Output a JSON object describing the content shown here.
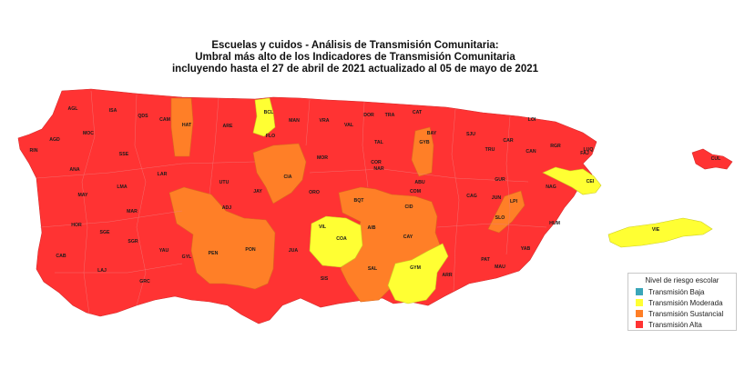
{
  "title": {
    "line1": "Escuelas y cuidos - Análisis de Transmisión Comunitaria:",
    "line2": "Umbral más alto de los Indicadores de Transmisión Comunitaria",
    "line3": "incluyendo hasta el 27 de abril de 2021 actualizado al 05 de mayo de 2021"
  },
  "colors": {
    "baja": "#3aa6b9",
    "moderada": "#ffff33",
    "sustancial": "#ff7f27",
    "alta": "#ff3333"
  },
  "legend": {
    "title": "Nivel de riesgo escolar",
    "items": [
      {
        "label": "Transmisión Baja",
        "color": "#3aa6b9"
      },
      {
        "label": "Transmisión Moderada",
        "color": "#ffff33"
      },
      {
        "label": "Transmisión Sustancial",
        "color": "#ff7f27"
      },
      {
        "label": "Transmisión Alta",
        "color": "#ff3333"
      }
    ]
  },
  "municipios": [
    {
      "abbr": "AGL",
      "level": "alta"
    },
    {
      "abbr": "ISA",
      "level": "alta"
    },
    {
      "abbr": "QDS",
      "level": "alta"
    },
    {
      "abbr": "CAM",
      "level": "alta"
    },
    {
      "abbr": "HAT",
      "level": "sustancial"
    },
    {
      "abbr": "ARE",
      "level": "alta"
    },
    {
      "abbr": "BCL",
      "level": "moderada"
    },
    {
      "abbr": "MAN",
      "level": "alta"
    },
    {
      "abbr": "VRA",
      "level": "alta"
    },
    {
      "abbr": "DOR",
      "level": "alta"
    },
    {
      "abbr": "TRA",
      "level": "alta"
    },
    {
      "abbr": "CAT",
      "level": "alta"
    },
    {
      "abbr": "LOI",
      "level": "alta"
    },
    {
      "abbr": "AGD",
      "level": "alta"
    },
    {
      "abbr": "MOC",
      "level": "alta"
    },
    {
      "abbr": "FLO",
      "level": "alta"
    },
    {
      "abbr": "VAL",
      "level": "alta"
    },
    {
      "abbr": "TAL",
      "level": "alta"
    },
    {
      "abbr": "GYB",
      "level": "sustancial"
    },
    {
      "abbr": "SJU",
      "level": "alta"
    },
    {
      "abbr": "CAR",
      "level": "alta"
    },
    {
      "abbr": "RGR",
      "level": "alta"
    },
    {
      "abbr": "RIN",
      "level": "alta"
    },
    {
      "abbr": "SSE",
      "level": "alta"
    },
    {
      "abbr": "MOR",
      "level": "alta"
    },
    {
      "abbr": "BAY",
      "level": "alta"
    },
    {
      "abbr": "TRU",
      "level": "alta"
    },
    {
      "abbr": "CAN",
      "level": "alta"
    },
    {
      "abbr": "LUQ",
      "level": "alta"
    },
    {
      "abbr": "FAJ",
      "level": "alta"
    },
    {
      "abbr": "ANA",
      "level": "alta"
    },
    {
      "abbr": "LAR",
      "level": "alta"
    },
    {
      "abbr": "CIA",
      "level": "sustancial"
    },
    {
      "abbr": "COR",
      "level": "alta"
    },
    {
      "abbr": "NAR",
      "level": "alta"
    },
    {
      "abbr": "CUL",
      "level": "alta"
    },
    {
      "abbr": "LMA",
      "level": "alta"
    },
    {
      "abbr": "UTU",
      "level": "alta"
    },
    {
      "abbr": "ABU",
      "level": "alta"
    },
    {
      "abbr": "GUR",
      "level": "alta"
    },
    {
      "abbr": "NAG",
      "level": "alta"
    },
    {
      "abbr": "CEI",
      "level": "moderada"
    },
    {
      "abbr": "MAY",
      "level": "alta"
    },
    {
      "abbr": "JAY",
      "level": "alta"
    },
    {
      "abbr": "ORO",
      "level": "alta"
    },
    {
      "abbr": "COM",
      "level": "alta"
    },
    {
      "abbr": "CAG",
      "level": "alta"
    },
    {
      "abbr": "JUN",
      "level": "alta"
    },
    {
      "abbr": "LPI",
      "level": "sustancial"
    },
    {
      "abbr": "MAR",
      "level": "alta"
    },
    {
      "abbr": "ADJ",
      "level": "sustancial"
    },
    {
      "abbr": "BQT",
      "level": "sustancial"
    },
    {
      "abbr": "CID",
      "level": "sustancial"
    },
    {
      "abbr": "SLO",
      "level": "alta"
    },
    {
      "abbr": "HUM",
      "level": "alta"
    },
    {
      "abbr": "HOR",
      "level": "alta"
    },
    {
      "abbr": "VIL",
      "level": "alta"
    },
    {
      "abbr": "AIB",
      "level": "alta"
    },
    {
      "abbr": "SGE",
      "level": "alta"
    },
    {
      "abbr": "COA",
      "level": "moderada"
    },
    {
      "abbr": "VIE",
      "level": "moderada"
    },
    {
      "abbr": "SGR",
      "level": "alta"
    },
    {
      "abbr": "YAU",
      "level": "alta"
    },
    {
      "abbr": "PEN",
      "level": "sustancial"
    },
    {
      "abbr": "PON",
      "level": "sustancial"
    },
    {
      "abbr": "CAY",
      "level": "sustancial"
    },
    {
      "abbr": "YAB",
      "level": "alta"
    },
    {
      "abbr": "CAB",
      "level": "alta"
    },
    {
      "abbr": "GYL",
      "level": "alta"
    },
    {
      "abbr": "JUA",
      "level": "alta"
    },
    {
      "abbr": "PAT",
      "level": "alta"
    },
    {
      "abbr": "LAJ",
      "level": "alta"
    },
    {
      "abbr": "SAL",
      "level": "sustancial"
    },
    {
      "abbr": "GYM",
      "level": "moderada"
    },
    {
      "abbr": "MAU",
      "level": "alta"
    },
    {
      "abbr": "ARR",
      "level": "alta"
    },
    {
      "abbr": "SIS",
      "level": "alta"
    },
    {
      "abbr": "GRC",
      "level": "alta"
    }
  ]
}
